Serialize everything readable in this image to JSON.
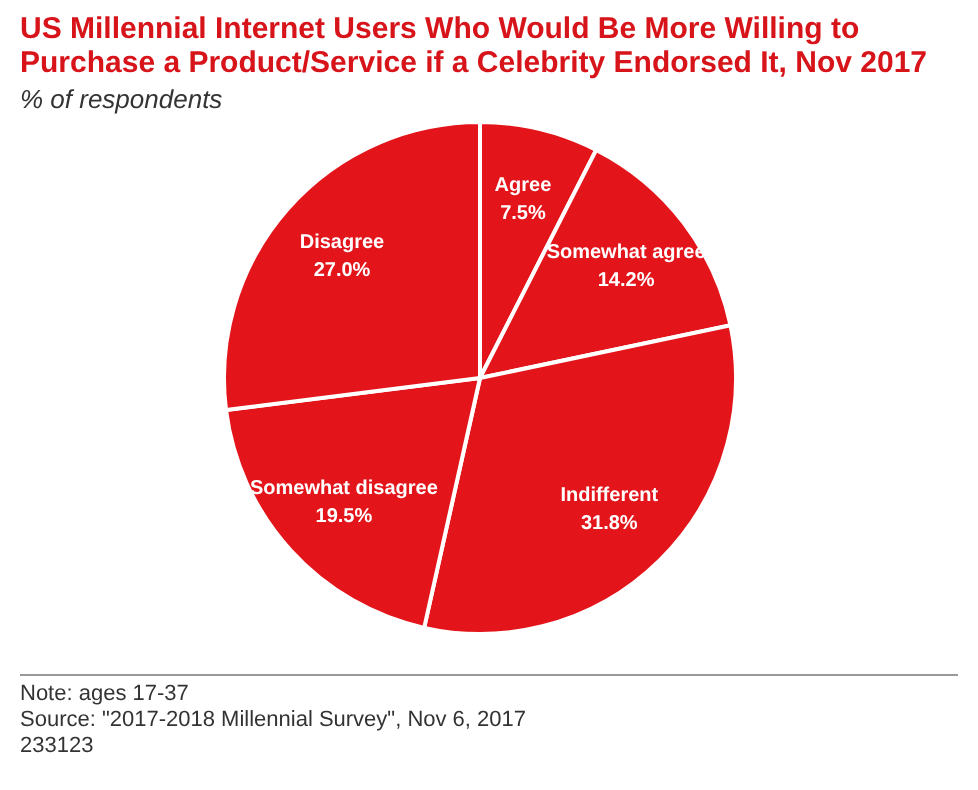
{
  "chart_data": {
    "type": "pie",
    "title": "US Millennial Internet Users Who Would Be More Willing to Purchase a Product/Service if a Celebrity Endorsed It, Nov 2017",
    "subtitle": "% of respondents",
    "categories": [
      "Agree",
      "Somewhat agree",
      "Indifferent",
      "Somewhat disagree",
      "Disagree"
    ],
    "values": [
      7.5,
      14.2,
      31.8,
      19.5,
      27.0
    ],
    "value_labels": [
      "7.5%",
      "14.2%",
      "31.8%",
      "19.5%",
      "27.0%"
    ],
    "colors": [
      "#e3151b",
      "#e3151b",
      "#e3151b",
      "#e3151b",
      "#e3151b"
    ],
    "legend": false,
    "annotations": [
      "Note: ages 17-37",
      "Source: \"2017-2018 Millennial Survey\", Nov 6, 2017",
      "233123"
    ]
  }
}
